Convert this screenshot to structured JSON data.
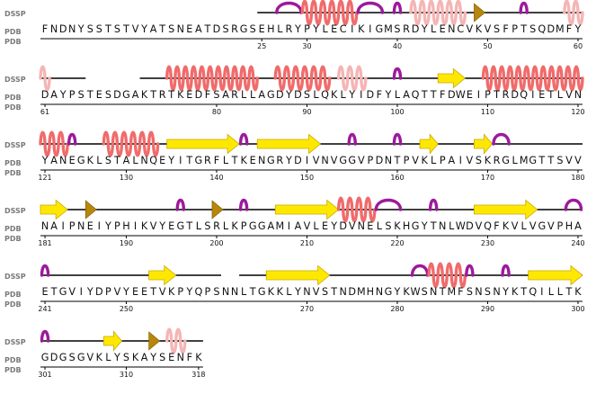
{
  "labels": {
    "dssp": "DSSP",
    "pdb": "PDB"
  },
  "colors": {
    "helix": "#f06b6b",
    "helix_faded": "#f5b5b5",
    "strand": "#ffe800",
    "strand_edge": "#c9a800",
    "turn": "#9c1a9c",
    "bend": "#b8860b",
    "line": "#000000"
  },
  "rows": [
    {
      "seq": "FNDNYSSTSTVYATSNEATDSRGSEHLRYPYLECIKIGMSRDYLENCVKVSFPTSQDMFY",
      "numbers": [
        {
          "label": "25",
          "idx": 24
        },
        {
          "label": "30",
          "idx": 29
        },
        {
          "label": "40",
          "idx": 39
        },
        {
          "label": "50",
          "idx": 49
        },
        {
          "label": "60",
          "idx": 59
        }
      ],
      "lines": [
        [
          24,
          59
        ]
      ],
      "features": [
        {
          "type": "turn",
          "s": 26,
          "e": 28
        },
        {
          "type": "helix",
          "s": 29,
          "e": 34
        },
        {
          "type": "turn",
          "s": 35,
          "e": 37
        },
        {
          "type": "turn",
          "s": 39,
          "e": 39
        },
        {
          "type": "helix_faded",
          "s": 41,
          "e": 46
        },
        {
          "type": "bend",
          "s": 48,
          "e": 48
        },
        {
          "type": "turn",
          "s": 53,
          "e": 53
        },
        {
          "type": "helix_faded",
          "s": 58,
          "e": 59
        }
      ]
    },
    {
      "seq": "DAYPSTESDGAKTRTKEDFSARLLAGDYDSLQKLYIDFYLAQTTFDWEIPTRDQIETLVN",
      "numbers": [
        {
          "label": "61",
          "idx": 0
        },
        {
          "label": "80",
          "idx": 19
        },
        {
          "label": "90",
          "idx": 29
        },
        {
          "label": "100",
          "idx": 39
        },
        {
          "label": "110",
          "idx": 49
        },
        {
          "label": "120",
          "idx": 59
        }
      ],
      "lines": [
        [
          0,
          4
        ],
        [
          11,
          59
        ]
      ],
      "features": [
        {
          "type": "helix_faded",
          "s": 0,
          "e": 0
        },
        {
          "type": "helix",
          "s": 14,
          "e": 23
        },
        {
          "type": "helix",
          "s": 26,
          "e": 31
        },
        {
          "type": "helix_faded",
          "s": 33,
          "e": 35
        },
        {
          "type": "turn",
          "s": 39,
          "e": 39
        },
        {
          "type": "strand",
          "s": 44,
          "e": 46
        },
        {
          "type": "helix",
          "s": 49,
          "e": 59
        }
      ]
    },
    {
      "seq": "YANEGKLSTALNQEYITGRFLTKENGRYDIVNVGGVPDNTPVKLPAIVSKRGLMGTTSVV",
      "numbers": [
        {
          "label": "121",
          "idx": 0
        },
        {
          "label": "130",
          "idx": 9
        },
        {
          "label": "140",
          "idx": 19
        },
        {
          "label": "150",
          "idx": 29
        },
        {
          "label": "160",
          "idx": 39
        },
        {
          "label": "170",
          "idx": 49
        },
        {
          "label": "180",
          "idx": 59
        }
      ],
      "lines": [
        [
          0,
          59
        ]
      ],
      "features": [
        {
          "type": "helix",
          "s": 0,
          "e": 2
        },
        {
          "type": "turn",
          "s": 3,
          "e": 3
        },
        {
          "type": "helix",
          "s": 7,
          "e": 12
        },
        {
          "type": "strand",
          "s": 14,
          "e": 21
        },
        {
          "type": "turn",
          "s": 22,
          "e": 22
        },
        {
          "type": "strand",
          "s": 24,
          "e": 30
        },
        {
          "type": "turn",
          "s": 34,
          "e": 34
        },
        {
          "type": "turn",
          "s": 39,
          "e": 39
        },
        {
          "type": "strand",
          "s": 42,
          "e": 43
        },
        {
          "type": "strand",
          "s": 48,
          "e": 49
        },
        {
          "type": "turn",
          "s": 50,
          "e": 51
        }
      ]
    },
    {
      "seq": "NAIPNEIYPHIKVYEGTLSRLKPGGAMIAVLEYDVNELSKHGYTNLWDVQFKVLVGVPHA",
      "numbers": [
        {
          "label": "181",
          "idx": 0
        },
        {
          "label": "190",
          "idx": 9
        },
        {
          "label": "200",
          "idx": 19
        },
        {
          "label": "210",
          "idx": 29
        },
        {
          "label": "220",
          "idx": 39
        },
        {
          "label": "230",
          "idx": 49
        },
        {
          "label": "240",
          "idx": 59
        }
      ],
      "lines": [
        [
          0,
          59
        ]
      ],
      "features": [
        {
          "type": "strand",
          "s": 0,
          "e": 2
        },
        {
          "type": "bend",
          "s": 5,
          "e": 5
        },
        {
          "type": "turn",
          "s": 15,
          "e": 15
        },
        {
          "type": "bend",
          "s": 19,
          "e": 19
        },
        {
          "type": "turn",
          "s": 22,
          "e": 22
        },
        {
          "type": "strand",
          "s": 26,
          "e": 32
        },
        {
          "type": "helix",
          "s": 33,
          "e": 36
        },
        {
          "type": "turn",
          "s": 37,
          "e": 39
        },
        {
          "type": "turn",
          "s": 43,
          "e": 43
        },
        {
          "type": "strand",
          "s": 48,
          "e": 54
        },
        {
          "type": "turn",
          "s": 58,
          "e": 59
        }
      ]
    },
    {
      "seq": "ETGVIYDPVYEETVKPYQPSNNLTGKKLYNVSTNDMHNGYKWSNTMFSNSNYKTQILLTK",
      "numbers": [
        {
          "label": "241",
          "idx": 0
        },
        {
          "label": "250",
          "idx": 9
        },
        {
          "label": "270",
          "idx": 29
        },
        {
          "label": "280",
          "idx": 39
        },
        {
          "label": "290",
          "idx": 49
        },
        {
          "label": "300",
          "idx": 59
        }
      ],
      "lines": [
        [
          0,
          19
        ],
        [
          22,
          59
        ]
      ],
      "features": [
        {
          "type": "turn",
          "s": 0,
          "e": 0
        },
        {
          "type": "strand",
          "s": 12,
          "e": 14
        },
        {
          "type": "strand",
          "s": 25,
          "e": 31
        },
        {
          "type": "turn",
          "s": 41,
          "e": 42
        },
        {
          "type": "helix",
          "s": 43,
          "e": 46
        },
        {
          "type": "turn",
          "s": 47,
          "e": 47
        },
        {
          "type": "turn",
          "s": 51,
          "e": 51
        },
        {
          "type": "strand",
          "s": 54,
          "e": 59
        }
      ]
    },
    {
      "seq": "GDGSGVKLYSKAYSENFK",
      "numbers": [
        {
          "label": "301",
          "idx": 0
        },
        {
          "label": "310",
          "idx": 9
        },
        {
          "label": "318",
          "idx": 17
        }
      ],
      "lines": [
        [
          0,
          17
        ]
      ],
      "features": [
        {
          "type": "turn",
          "s": 0,
          "e": 0
        },
        {
          "type": "strand",
          "s": 7,
          "e": 8
        },
        {
          "type": "bend",
          "s": 12,
          "e": 12
        },
        {
          "type": "helix_faded",
          "s": 14,
          "e": 15
        }
      ]
    }
  ]
}
